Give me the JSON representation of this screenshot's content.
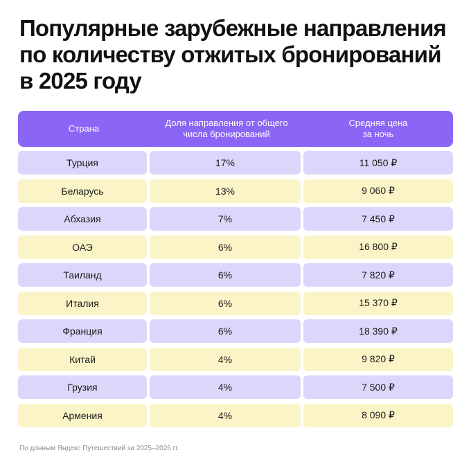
{
  "title_lines": [
    "Популярные зарубежные направления",
    "по количеству отжитых бронирований",
    "в 2025 году"
  ],
  "table": {
    "headers": [
      "Страна",
      "Доля направления от общего\nчисла бронирований",
      "Средняя цена\nза ночь"
    ],
    "rows": [
      {
        "country": "Турция",
        "share": "17%",
        "price": "11 050 ₽"
      },
      {
        "country": "Беларусь",
        "share": "13%",
        "price": "9 060 ₽"
      },
      {
        "country": "Абхазия",
        "share": "7%",
        "price": "7 450 ₽"
      },
      {
        "country": "ОАЭ",
        "share": "6%",
        "price": "16 800 ₽"
      },
      {
        "country": "Таиланд",
        "share": "6%",
        "price": "7 820 ₽"
      },
      {
        "country": "Италия",
        "share": "6%",
        "price": "15 370 ₽"
      },
      {
        "country": "Франция",
        "share": "6%",
        "price": "18 390 ₽"
      },
      {
        "country": "Китай",
        "share": "4%",
        "price": "9 820 ₽"
      },
      {
        "country": "Грузия",
        "share": "4%",
        "price": "7 500 ₽"
      },
      {
        "country": "Армения",
        "share": "4%",
        "price": "8 090 ₽"
      }
    ]
  },
  "footnote": "По данным Яндекс Путешествий за 2025–2026 гг.",
  "colors": {
    "header_bg": "#8b65f5",
    "row_purple": "#ddd6fb",
    "row_yellow": "#fbf4c7"
  }
}
